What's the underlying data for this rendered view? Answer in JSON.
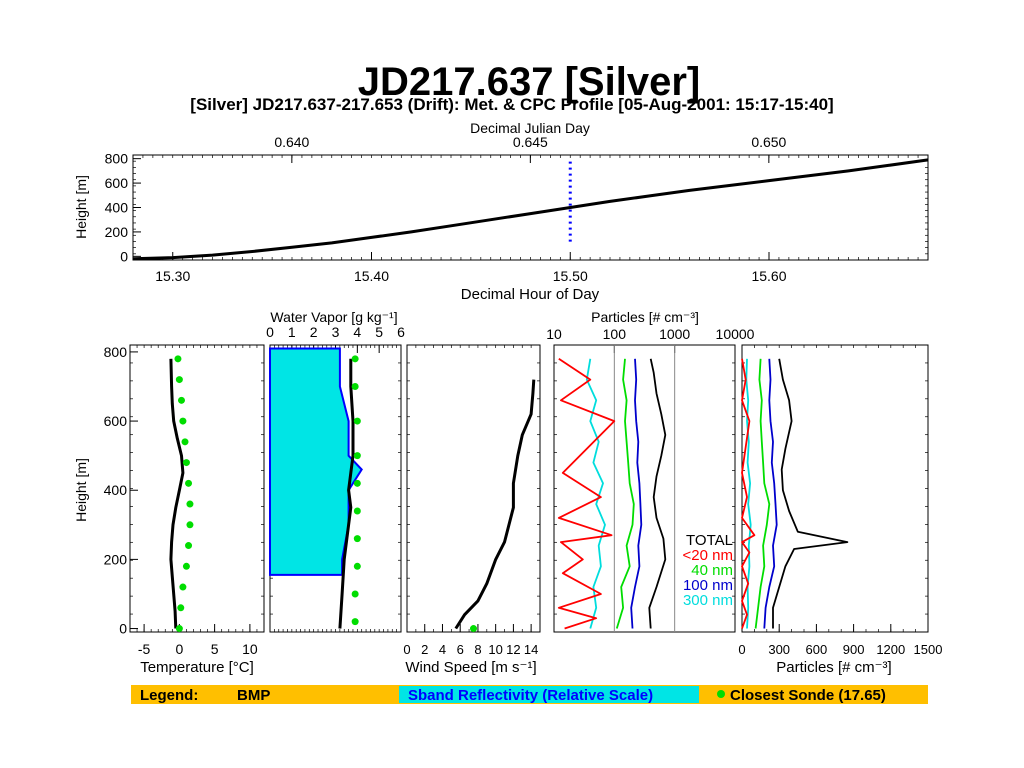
{
  "chart_data": [
    {
      "id": "height_vs_time",
      "type": "line",
      "title": "JD217.637 [Silver]",
      "subtitle": "[Silver] JD217.637-217.653 (Drift): Met. & CPC Profile [05-Aug-2001: 15:17-15:40]",
      "xlabel": "Decimal Hour of Day",
      "x2label": "Decimal Julian Day",
      "ylabel": "Height [m]",
      "xlim": [
        15.28,
        15.68
      ],
      "ylim": [
        -30,
        830
      ],
      "x_ticks": [
        "15.30",
        "15.40",
        "15.50",
        "15.60"
      ],
      "x2_ticks": [
        "0.640",
        "0.645",
        "0.650"
      ],
      "y_ticks": [
        "0",
        "200",
        "400",
        "600",
        "800"
      ],
      "series": [
        {
          "x": [
            15.28,
            15.3,
            15.32,
            15.34,
            15.36,
            15.38,
            15.4,
            15.42,
            15.44,
            15.46,
            15.48,
            15.5,
            15.52,
            15.54,
            15.56,
            15.58,
            15.6,
            15.62,
            15.64,
            15.66,
            15.68
          ],
          "y": [
            -20,
            -10,
            10,
            40,
            75,
            110,
            155,
            200,
            250,
            300,
            350,
            400,
            450,
            495,
            540,
            580,
            620,
            660,
            700,
            745,
            790
          ]
        }
      ],
      "marker_x": 15.5,
      "marker_y": [
        120,
        800
      ]
    },
    {
      "id": "temperature",
      "type": "line",
      "xlabel": "Temperature [°C]",
      "ylabel": "Height [m]",
      "xlim": [
        -7,
        12
      ],
      "ylim": [
        -10,
        820
      ],
      "x_ticks": [
        "-5",
        "0",
        "5",
        "10"
      ],
      "y_ticks": [
        "0",
        "200",
        "400",
        "600",
        "800"
      ],
      "series": [
        {
          "name": "BMP",
          "x": [
            -0.5,
            -0.6,
            -0.8,
            -1.0,
            -1.2,
            -1.1,
            -0.9,
            -0.5,
            0.0,
            0.5,
            0.3,
            -0.3,
            -0.8,
            -1.0,
            -1.1,
            -1.2
          ],
          "y": [
            0,
            50,
            100,
            150,
            200,
            250,
            300,
            350,
            400,
            450,
            500,
            550,
            600,
            650,
            700,
            780
          ]
        },
        {
          "name": "Closest Sonde",
          "x": [
            0.0,
            0.2,
            0.5,
            1.0,
            1.3,
            1.5,
            1.5,
            1.3,
            1.0,
            0.8,
            0.5,
            0.3,
            0.0,
            -0.2
          ],
          "y": [
            0,
            60,
            120,
            180,
            240,
            300,
            360,
            420,
            480,
            540,
            600,
            660,
            720,
            780
          ]
        }
      ]
    },
    {
      "id": "water_vapor",
      "type": "area",
      "x2label": "Water Vapor [g kg⁻¹]",
      "xlim": [
        0,
        6
      ],
      "ylim": [
        -10,
        820
      ],
      "x2_ticks": [
        "0",
        "1",
        "2",
        "3",
        "4",
        "5",
        "6"
      ],
      "series": [
        {
          "name": "Sband Reflectivity (Relative Scale)",
          "x": [
            0,
            3.3,
            3.3,
            3.6,
            3.6,
            4.2,
            3.6,
            3.6,
            3.2,
            3.2,
            0
          ],
          "y": [
            155,
            155,
            200,
            300,
            400,
            460,
            500,
            600,
            700,
            810,
            810
          ]
        },
        {
          "name": "BMP",
          "x": [
            3.2,
            3.3,
            3.4,
            3.6,
            3.7,
            3.6,
            3.7,
            3.8,
            3.8,
            3.7,
            3.7,
            3.7
          ],
          "y": [
            0,
            100,
            200,
            300,
            350,
            400,
            450,
            500,
            600,
            700,
            750,
            780
          ]
        },
        {
          "name": "Closest Sonde",
          "x": [
            3.9,
            3.9,
            4.0,
            4.0,
            4.0,
            4.0,
            4.0,
            4.0,
            3.9,
            3.9
          ],
          "y": [
            20,
            100,
            180,
            260,
            340,
            420,
            500,
            600,
            700,
            780
          ]
        }
      ]
    },
    {
      "id": "wind_speed",
      "type": "line",
      "xlabel": "Wind Speed [m s⁻¹]",
      "xlim": [
        0,
        15
      ],
      "ylim": [
        -10,
        820
      ],
      "x_ticks": [
        "0",
        "2",
        "4",
        "6",
        "8",
        "10",
        "12",
        "14"
      ],
      "series": [
        {
          "name": "BMP",
          "x": [
            5.5,
            6.5,
            8.0,
            9.0,
            10.0,
            11.0,
            12.0,
            12.0,
            12.5,
            13.0,
            14.0,
            14.2,
            14.3
          ],
          "y": [
            0,
            40,
            80,
            130,
            200,
            250,
            350,
            420,
            500,
            560,
            620,
            680,
            720
          ]
        },
        {
          "name": "Closest Sonde",
          "x": [
            7.5
          ],
          "y": [
            0
          ]
        }
      ]
    },
    {
      "id": "particles_log",
      "type": "line",
      "x2label": "Particles [# cm⁻³]",
      "xscale": "log",
      "xlim": [
        10,
        10000
      ],
      "ylim": [
        -10,
        820
      ],
      "x2_ticks": [
        "10",
        "100",
        "1000",
        "10000"
      ],
      "legend": [
        {
          "label": "TOTAL",
          "color": "#000000"
        },
        {
          "label": "<20 nm",
          "color": "#ff0000"
        },
        {
          "label": "40 nm",
          "color": "#00dd00"
        },
        {
          "label": "100 nm",
          "color": "#0000cc"
        },
        {
          "label": "300 nm",
          "color": "#00dddd"
        }
      ],
      "series": [
        {
          "name": "TOTAL",
          "x": [
            400,
            380,
            500,
            700,
            650,
            500,
            450,
            500,
            600,
            700,
            600,
            500,
            450,
            400
          ],
          "y": [
            0,
            60,
            120,
            200,
            260,
            320,
            380,
            440,
            500,
            560,
            620,
            680,
            740,
            780
          ]
        },
        {
          "name": "<20 nm",
          "x": [
            15,
            50,
            12,
            60,
            14,
            30,
            13,
            90,
            12,
            60,
            14,
            100,
            13,
            40,
            12
          ],
          "y": [
            0,
            30,
            60,
            100,
            160,
            200,
            250,
            270,
            320,
            380,
            450,
            600,
            660,
            720,
            780
          ]
        },
        {
          "name": "40 nm",
          "x": [
            110,
            140,
            130,
            180,
            160,
            200,
            210,
            180,
            170,
            160,
            150,
            160,
            140,
            150
          ],
          "y": [
            0,
            60,
            120,
            180,
            240,
            300,
            360,
            420,
            480,
            540,
            600,
            660,
            720,
            780
          ]
        },
        {
          "name": "100 nm",
          "x": [
            200,
            190,
            220,
            260,
            250,
            280,
            270,
            260,
            240,
            250,
            230,
            220,
            230,
            220
          ],
          "y": [
            0,
            60,
            120,
            180,
            240,
            300,
            360,
            420,
            480,
            540,
            600,
            660,
            720,
            780
          ]
        },
        {
          "name": "300 nm",
          "x": [
            40,
            50,
            45,
            60,
            55,
            70,
            50,
            65,
            45,
            55,
            40,
            50,
            35,
            40
          ],
          "y": [
            0,
            60,
            120,
            180,
            240,
            300,
            360,
            420,
            480,
            540,
            600,
            660,
            720,
            780
          ]
        }
      ]
    },
    {
      "id": "particles_linear",
      "type": "line",
      "xlabel": "Particles [# cm⁻³]",
      "xlim": [
        0,
        1500
      ],
      "ylim": [
        -10,
        820
      ],
      "x_ticks": [
        "0",
        "300",
        "600",
        "900",
        "1200",
        "1500"
      ],
      "series": [
        {
          "name": "TOTAL",
          "x": [
            250,
            250,
            300,
            350,
            420,
            850,
            450,
            380,
            330,
            320,
            350,
            400,
            380,
            330,
            300
          ],
          "y": [
            0,
            60,
            120,
            180,
            230,
            250,
            280,
            340,
            400,
            460,
            520,
            600,
            660,
            720,
            780
          ]
        },
        {
          "name": "<20 nm",
          "x": [
            0,
            40,
            0,
            50,
            0,
            60,
            0,
            100,
            0,
            40,
            0,
            60,
            0,
            30,
            0
          ],
          "y": [
            0,
            40,
            80,
            130,
            180,
            220,
            250,
            270,
            320,
            380,
            450,
            600,
            660,
            720,
            780
          ]
        },
        {
          "name": "40 nm",
          "x": [
            110,
            130,
            150,
            180,
            170,
            200,
            220,
            180,
            170,
            160,
            150,
            160,
            140,
            150
          ],
          "y": [
            0,
            60,
            120,
            180,
            240,
            300,
            360,
            420,
            480,
            540,
            600,
            660,
            720,
            780
          ]
        },
        {
          "name": "100 nm",
          "x": [
            180,
            190,
            220,
            260,
            250,
            280,
            270,
            260,
            240,
            250,
            230,
            220,
            230,
            220
          ],
          "y": [
            0,
            60,
            120,
            180,
            240,
            300,
            360,
            420,
            480,
            540,
            600,
            660,
            720,
            780
          ]
        },
        {
          "name": "300 nm",
          "x": [
            40,
            50,
            45,
            60,
            55,
            70,
            50,
            65,
            45,
            55,
            40,
            50,
            35,
            40
          ],
          "y": [
            0,
            60,
            120,
            180,
            240,
            300,
            360,
            420,
            480,
            540,
            600,
            660,
            720,
            780
          ]
        }
      ]
    }
  ],
  "legend_bar": {
    "label": "Legend:",
    "bmp": "BMP",
    "sband": "Sband Reflectivity (Relative Scale)",
    "sonde": "Closest Sonde (17.65)",
    "bar_color": "#ffbf00",
    "sband_bg": "#00e5e5",
    "sband_text_color": "#0000ff",
    "sonde_color": "#00dd00"
  },
  "colors": {
    "bmp": "#000000",
    "sonde": "#00dd00",
    "sband_fill": "#00e5e5",
    "sband_stroke": "#0000ff",
    "marker": "#0000ff"
  }
}
